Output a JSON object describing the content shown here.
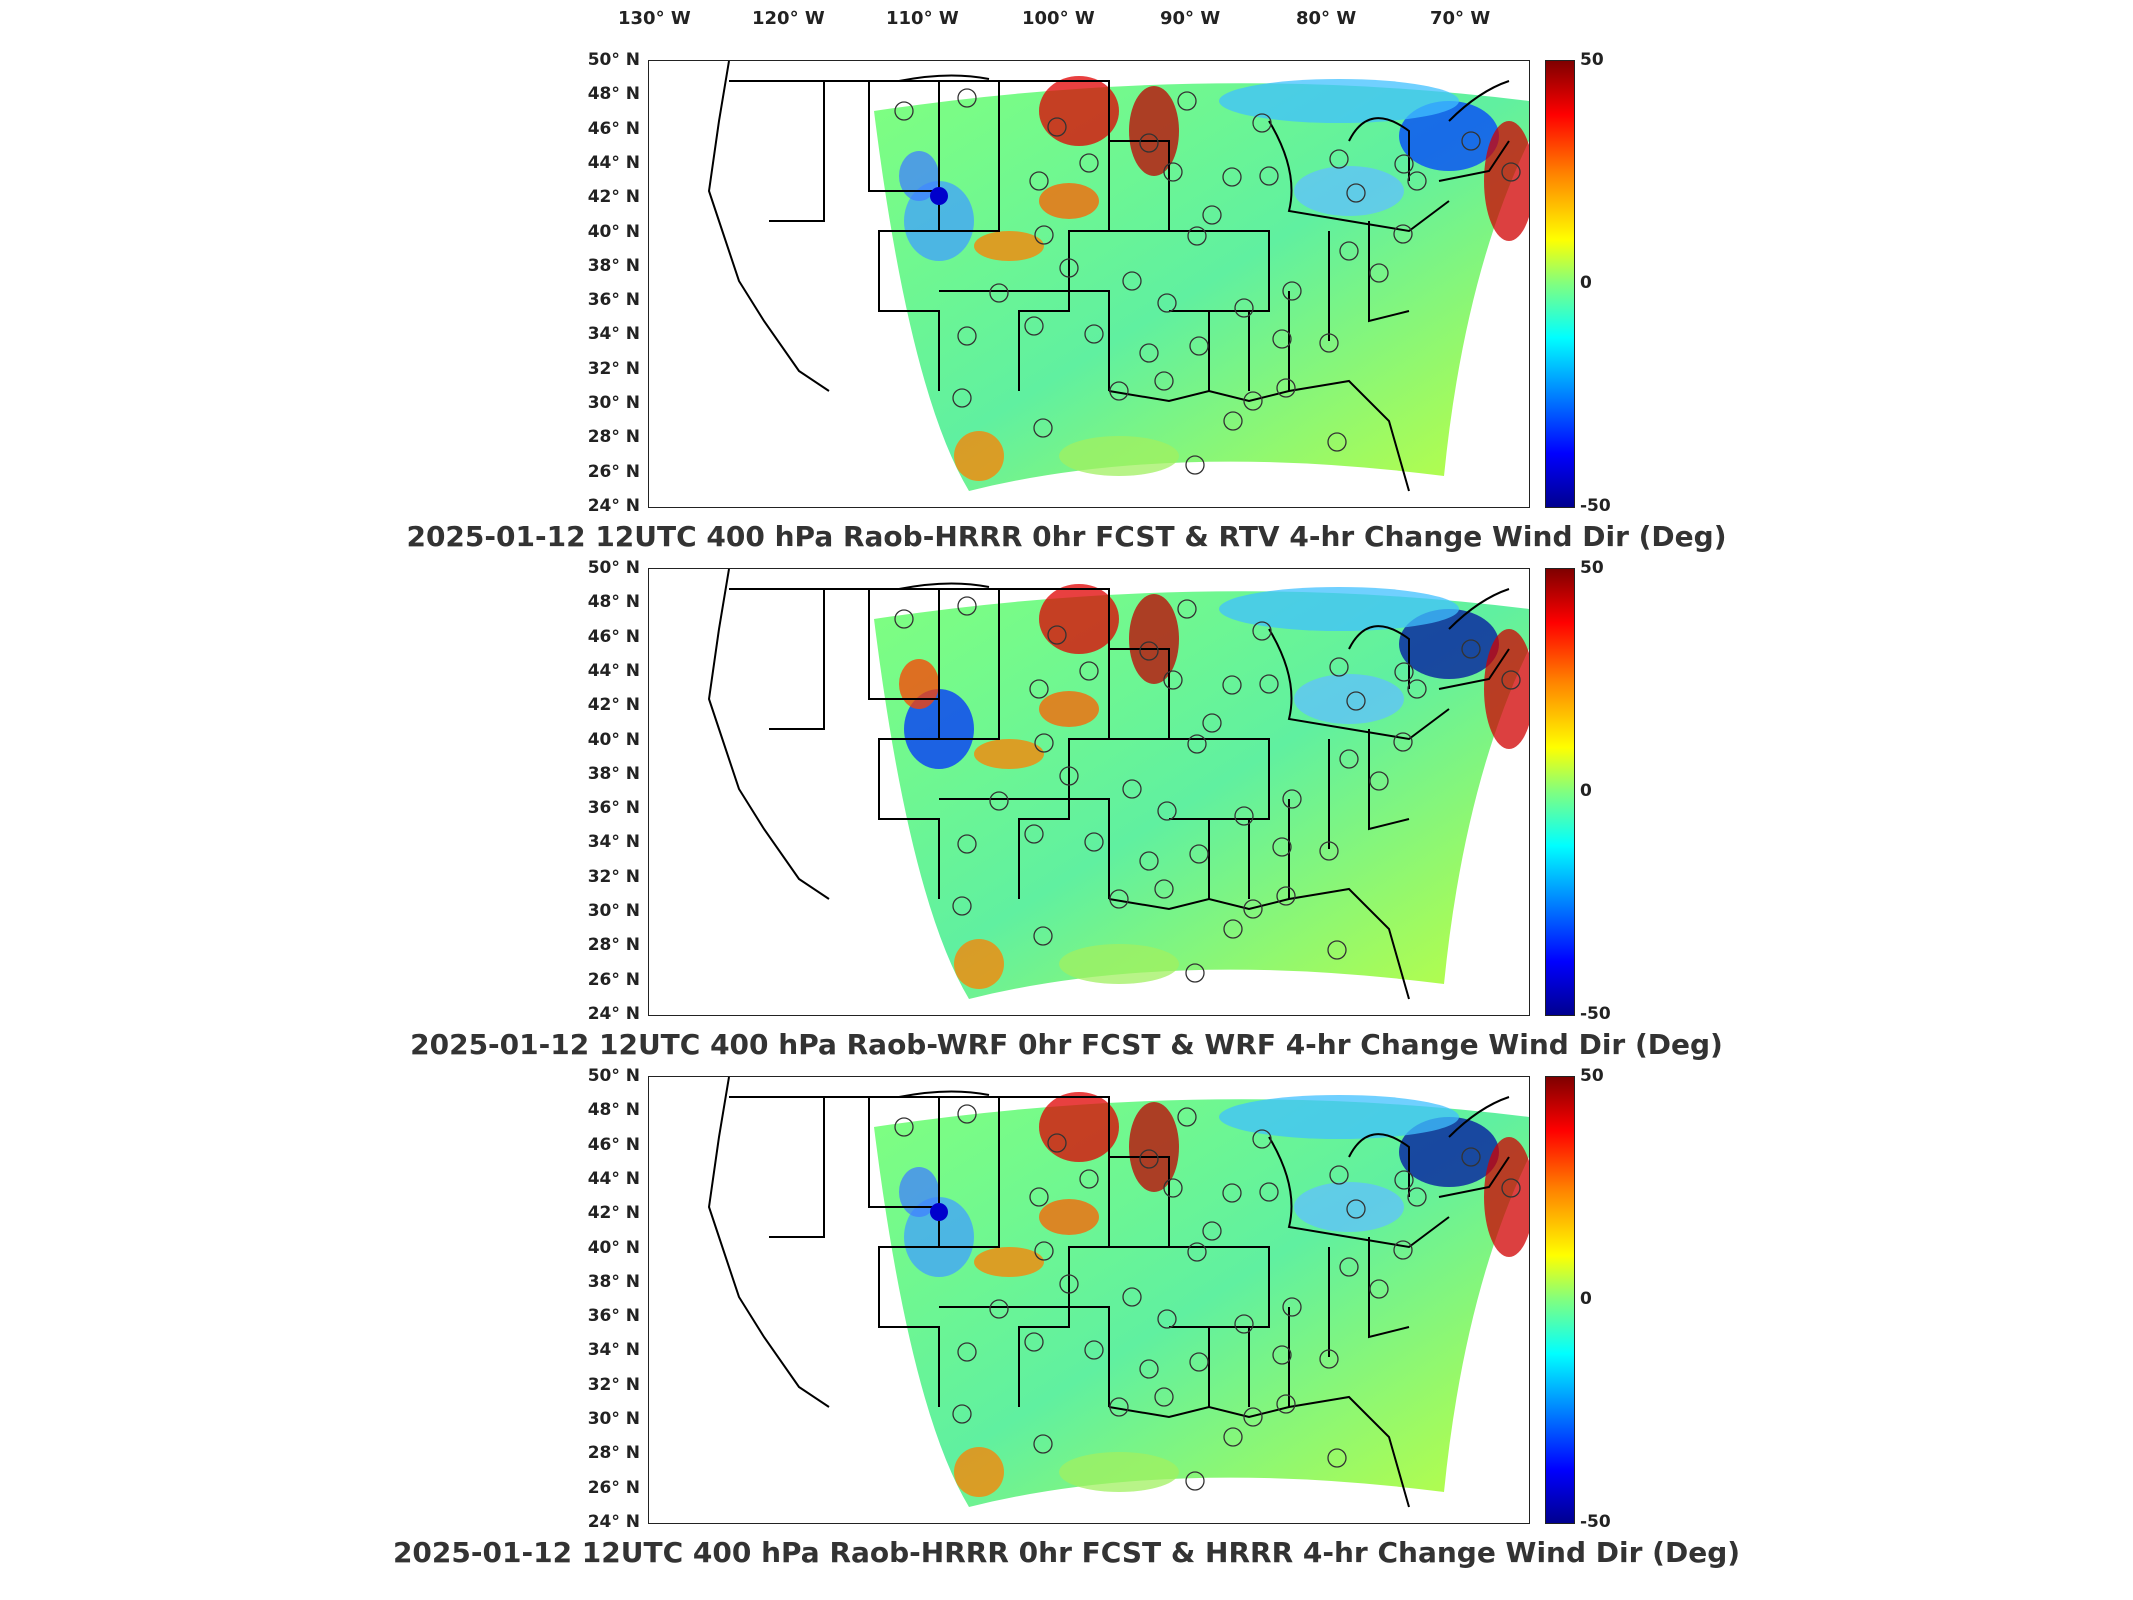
{
  "longitude_labels": [
    "130° W",
    "120° W",
    "110° W",
    "100° W",
    "90° W",
    "80° W",
    "70° W"
  ],
  "latitude_labels": [
    "50° N",
    "48° N",
    "46° N",
    "44° N",
    "42° N",
    "40° N",
    "38° N",
    "36° N",
    "34° N",
    "32° N",
    "30° N",
    "28° N",
    "26° N",
    "24° N"
  ],
  "colorbar": {
    "max": "50",
    "mid": "0",
    "min": "-50"
  },
  "panels": [
    {
      "title": "2025-01-12 12UTC 400 hPa Raob-HRRR 0hr FCST & RTV 4-hr Change Wind Dir (Deg)"
    },
    {
      "title": "2025-01-12 12UTC 400 hPa Raob-WRF 0hr FCST & WRF 4-hr Change Wind Dir (Deg)"
    },
    {
      "title": "2025-01-12 12UTC 400 hPa Raob-HRRR 0hr FCST & HRRR 4-hr Change Wind Dir (Deg)"
    }
  ],
  "colors": {
    "high": "#b00000",
    "mid": "#80ff80",
    "low": "#00008f",
    "dot": "#0000cc"
  },
  "stations_count": 48
}
